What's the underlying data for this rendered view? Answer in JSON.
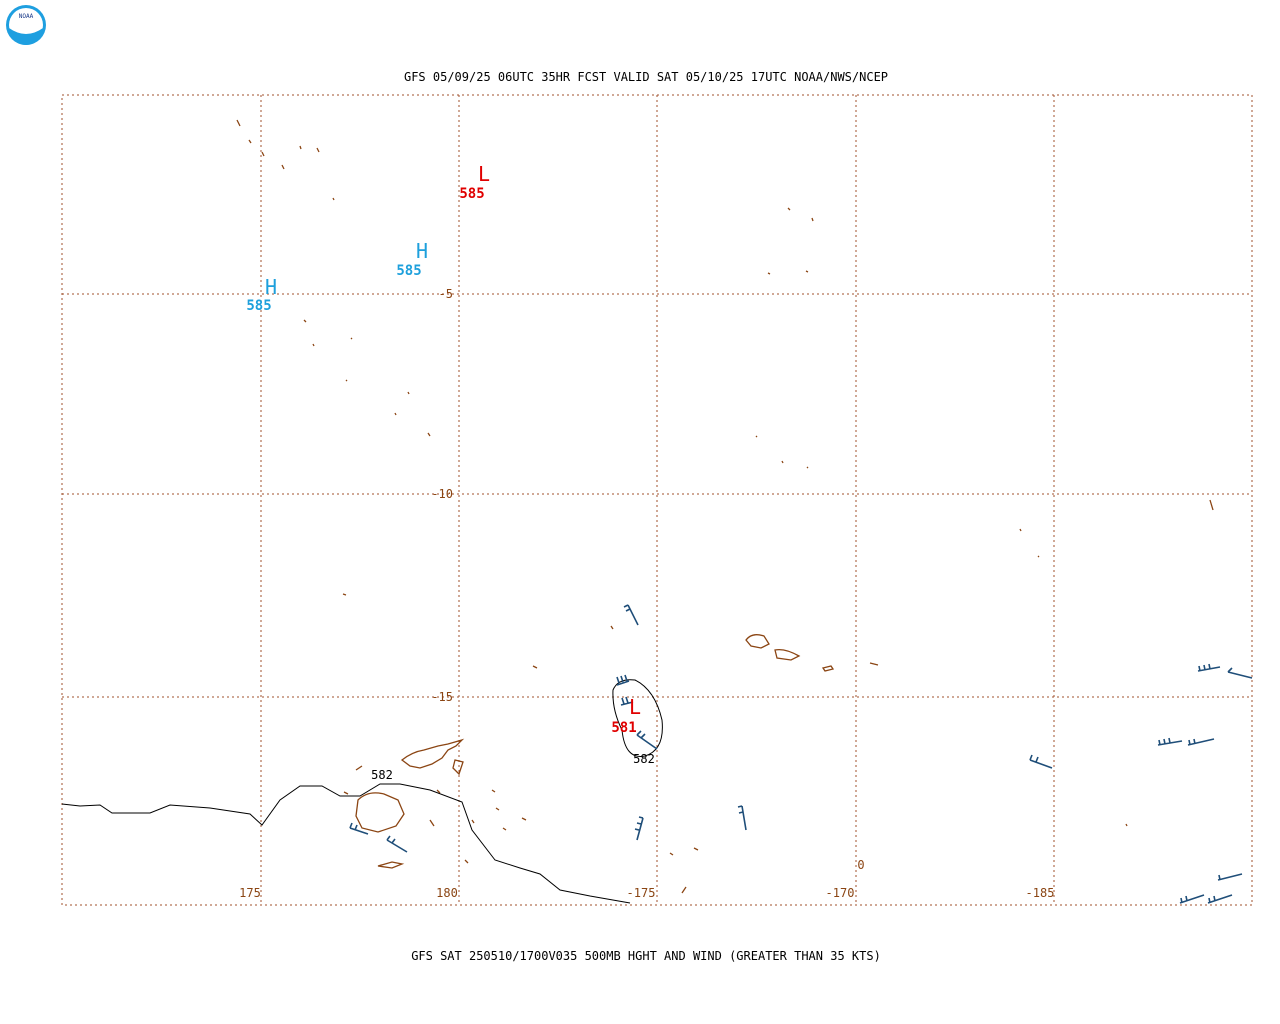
{
  "header": {
    "title": "GFS 05/09/25 06UTC 35HR FCST VALID SAT 05/10/25 17UTC NOAA/NWS/NCEP"
  },
  "logo": {
    "text": "NOAA"
  },
  "grid": {
    "lat_labels": [
      "-5",
      "-10",
      "-15"
    ],
    "lon_labels": [
      "175",
      "180",
      "-175",
      "-170",
      "-185"
    ]
  },
  "centers": [
    {
      "symbol": "L",
      "value": "585"
    },
    {
      "symbol": "H",
      "value": "585"
    },
    {
      "symbol": "H",
      "value": "585"
    },
    {
      "symbol": "L",
      "value": "581"
    }
  ],
  "contour_labels": [
    "582",
    "582",
    "0"
  ],
  "footer": {
    "caption": "GFS SAT 250510/1700V035 500MB HGHT AND WIND (GREATER THAN 35 KTS)"
  }
}
